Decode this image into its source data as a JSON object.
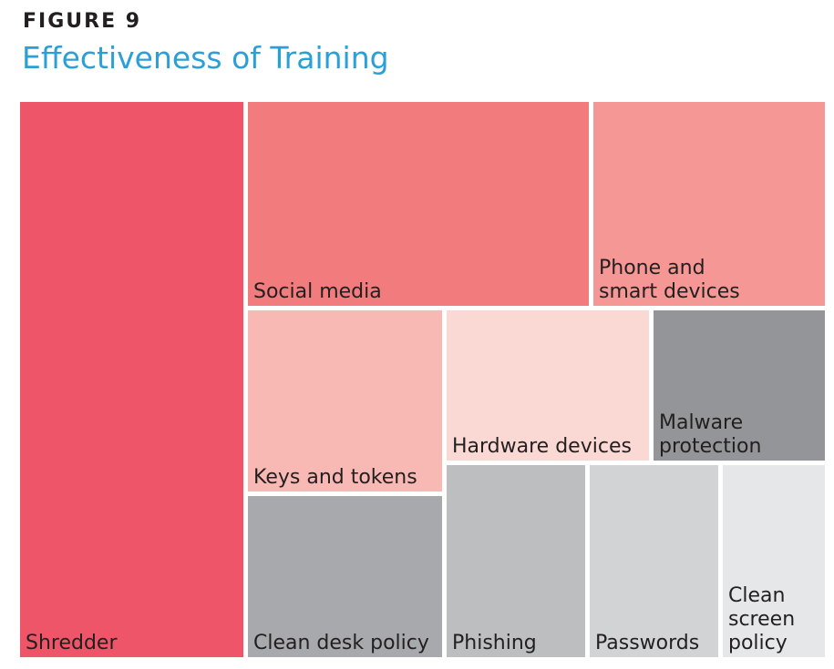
{
  "header": {
    "figure_label": "FIGURE 9",
    "title": "Effectiveness of Training"
  },
  "chart_data": {
    "type": "treemap",
    "title": "Effectiveness of Training",
    "values_note": "",
    "items": [
      {
        "name": "Shredder",
        "label_lines": [
          "Shredder"
        ],
        "value": 10.9,
        "color": "#ef5569"
      },
      {
        "name": "Social media",
        "label_lines": [
          "Social media"
        ],
        "value": 6.6,
        "color": "#f27b7d"
      },
      {
        "name": "Phone and smart devices",
        "label_lines": [
          "Phone and",
          "smart devices"
        ],
        "value": 3.5,
        "color": "#f59895"
      },
      {
        "name": "Keys and tokens",
        "label_lines": [
          "Keys and tokens"
        ],
        "value": 3.1,
        "color": "#f8b9b4"
      },
      {
        "name": "Hardware devices",
        "label_lines": [
          "Hardware devices"
        ],
        "value": 2.8,
        "color": "#fad9d4"
      },
      {
        "name": "Malware protection",
        "label_lines": [
          "Malware",
          "protection"
        ],
        "value": 2.0,
        "color": "#939598"
      },
      {
        "name": "Clean desk policy",
        "label_lines": [
          "Clean desk policy"
        ],
        "value": 2.7,
        "color": "#a7a9ac"
      },
      {
        "name": "Phishing",
        "label_lines": [
          "Phishing"
        ],
        "value": 2.1,
        "color": "#bcbec0"
      },
      {
        "name": "Passwords",
        "label_lines": [
          "Passwords"
        ],
        "value": 2.0,
        "color": "#d1d3d4"
      },
      {
        "name": "Clean screen policy",
        "label_lines": [
          "Clean",
          "screen",
          "policy"
        ],
        "value": 1.6,
        "color": "#e6e7e8"
      }
    ]
  }
}
